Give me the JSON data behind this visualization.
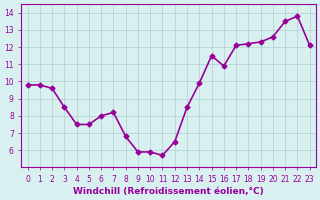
{
  "x": [
    0,
    1,
    2,
    3,
    4,
    5,
    6,
    7,
    8,
    9,
    10,
    11,
    12,
    13,
    14,
    15,
    16,
    17,
    18,
    19,
    20,
    21,
    22,
    23
  ],
  "y": [
    9.8,
    9.8,
    9.6,
    8.5,
    7.5,
    7.5,
    8.0,
    8.2,
    6.8,
    5.9,
    5.9,
    5.7,
    6.5,
    8.5,
    9.9,
    11.5,
    10.9,
    12.1,
    12.2,
    12.3,
    12.6,
    13.5,
    13.8,
    12.1
  ],
  "xlim": [
    -0.5,
    23.5
  ],
  "ylim": [
    5,
    14.5
  ],
  "yticks": [
    6,
    7,
    8,
    9,
    10,
    11,
    12,
    13,
    14
  ],
  "xticks": [
    0,
    1,
    2,
    3,
    4,
    5,
    6,
    7,
    8,
    9,
    10,
    11,
    12,
    13,
    14,
    15,
    16,
    17,
    18,
    19,
    20,
    21,
    22,
    23
  ],
  "xlabel": "Windchill (Refroidissement éolien,°C)",
  "line_color": "#990099",
  "marker": "D",
  "marker_size": 2.5,
  "line_width": 1.2,
  "bg_color": "#d8f0f0",
  "grid_color": "#b0d0d0",
  "tick_label_color": "#990099",
  "axis_label_color": "#990099",
  "tick_fontsize": 5.5,
  "xlabel_fontsize": 6.5
}
